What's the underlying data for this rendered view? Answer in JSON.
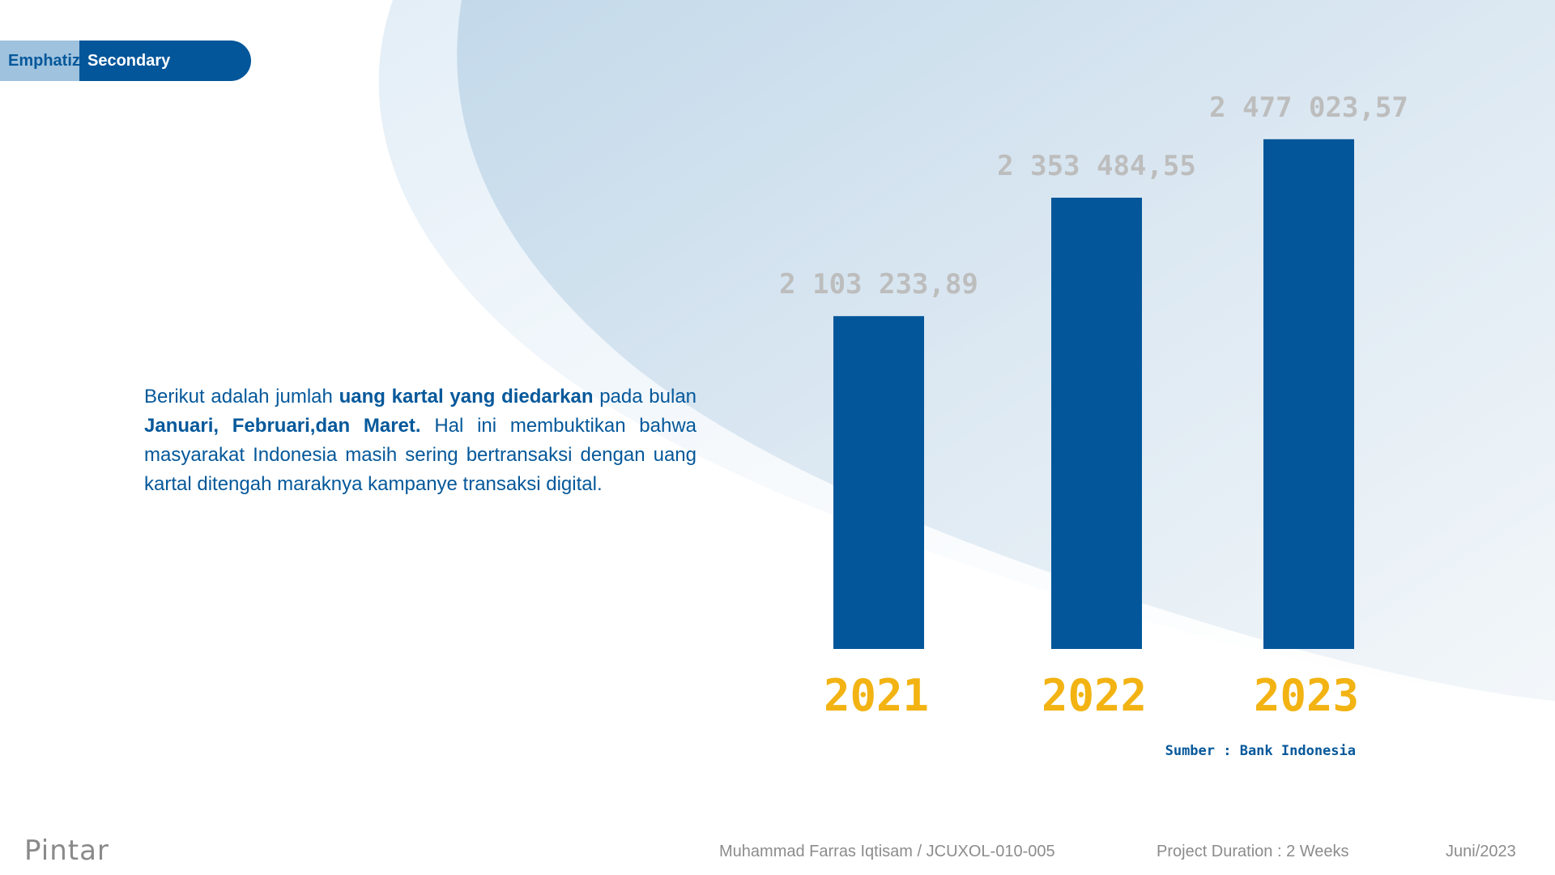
{
  "header": {
    "crumb_primary": "Emphatize",
    "crumb_secondary": "Secondary Research"
  },
  "description": {
    "part1": "Berikut adalah jumlah ",
    "bold1": "uang kartal yang diedarkan",
    "part2": " pada bulan ",
    "bold2": "Januari, Februari,dan Maret.",
    "part3": " Hal ini membuktikan bahwa masyarakat Indonesia masih sering bertransaksi dengan uang kartal ditengah maraknya kampanye transaksi digital."
  },
  "chart_data": {
    "type": "bar",
    "title": "",
    "xlabel": "",
    "ylabel": "",
    "categories": [
      "2021",
      "2022",
      "2023"
    ],
    "values": [
      2103233.89,
      2353484.55,
      2477023.57
    ],
    "value_labels": [
      "2 103 233,89",
      "2 353 484,55",
      "2 477 023,57"
    ],
    "ylim": [
      1400000,
      2600000
    ],
    "grid": false,
    "colors": {
      "bar": "#03569a",
      "category_label": "#f2b313",
      "value_label": "#bdbdbd"
    }
  },
  "source": {
    "text": "Sumber : Bank Indonesia"
  },
  "footer": {
    "logo": "Pintar",
    "author": "Muhammad Farras Iqtisam / JCUXOL-010-005",
    "duration": "Project Duration : 2 Weeks",
    "date": "Juni/2023"
  },
  "colors": {
    "primary": "#03569a",
    "accent": "#f2b313",
    "muted": "#8c8c8c"
  }
}
